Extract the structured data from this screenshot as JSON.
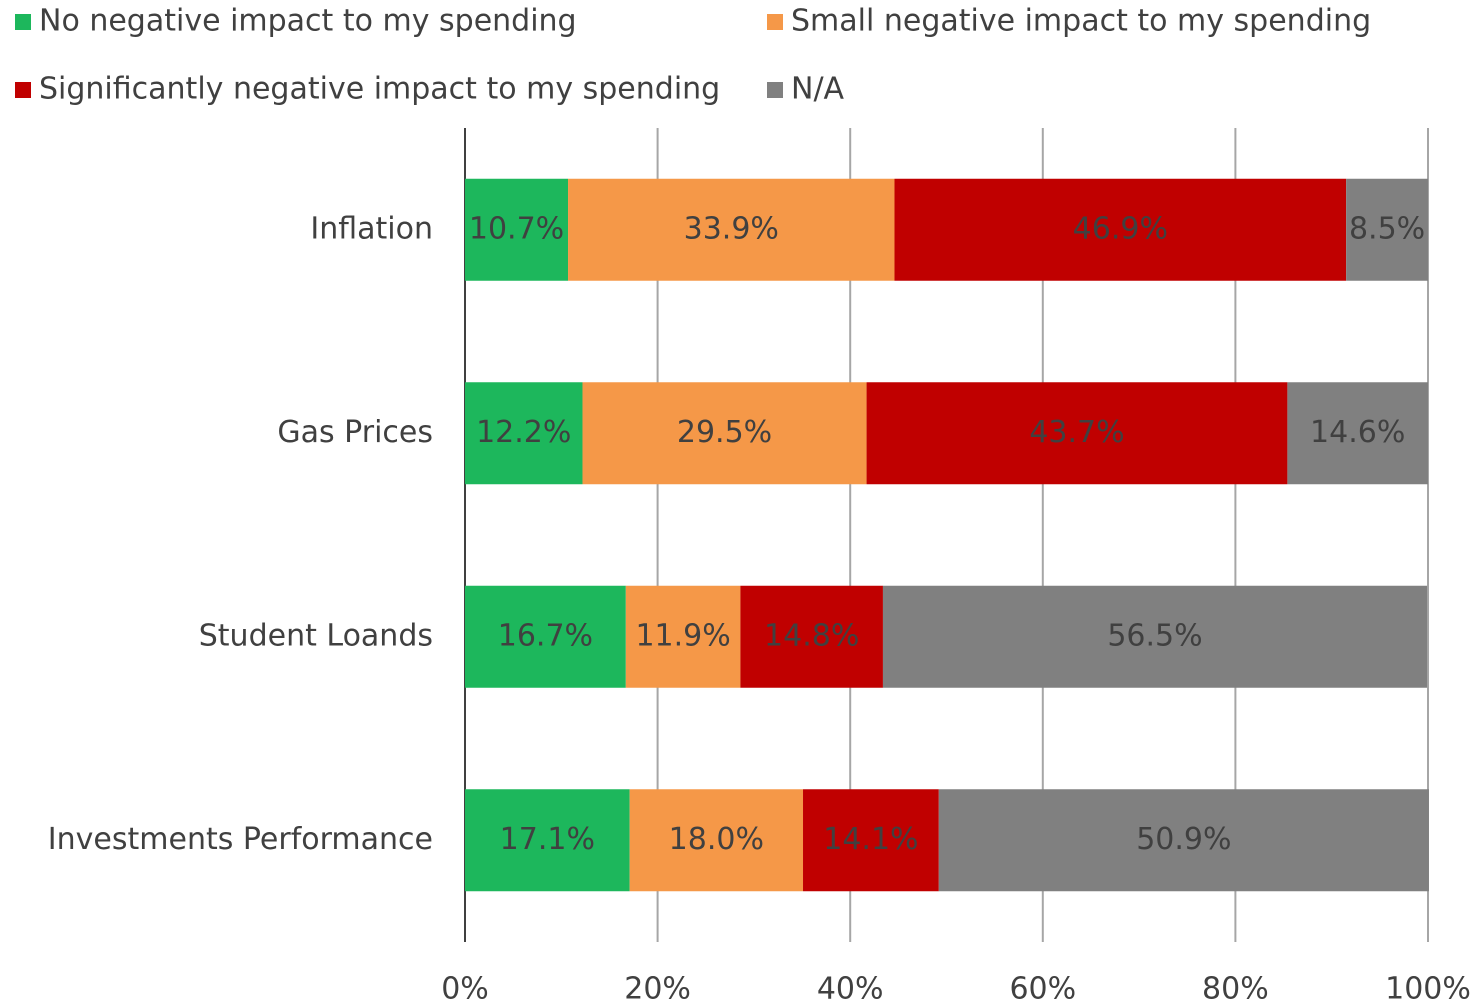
{
  "chart_data": {
    "type": "bar",
    "orientation": "horizontal",
    "stacked": true,
    "categories": [
      "Inflation",
      "Gas Prices",
      "Student Loands",
      "Investments Performance"
    ],
    "series": [
      {
        "name": "No negative impact to my spending",
        "color": "#1db75c",
        "values": [
          10.7,
          12.2,
          16.7,
          17.1
        ],
        "value_labels": [
          "10.7%",
          "12.2%",
          "16.7%",
          "17.1%"
        ]
      },
      {
        "name": "Small negative impact to my spending",
        "color": "#f59848",
        "values": [
          33.9,
          29.5,
          11.9,
          18.0
        ],
        "value_labels": [
          "33.9%",
          "29.5%",
          "11.9%",
          "18.0%"
        ]
      },
      {
        "name": "Significantly negative impact to my spending",
        "color": "#c00000",
        "values": [
          46.9,
          43.7,
          14.8,
          14.1
        ],
        "value_labels": [
          "46.9%",
          "43.7%",
          "14.8%",
          "14.1%"
        ]
      },
      {
        "name": "N/A",
        "color": "#808080",
        "values": [
          8.5,
          14.6,
          56.5,
          50.9
        ],
        "value_labels": [
          "8.5%",
          "14.6%",
          "56.5%",
          "50.9%"
        ]
      }
    ],
    "xlim": [
      0,
      100
    ],
    "xticks": [
      {
        "value": 0,
        "label": "0%"
      },
      {
        "value": 20,
        "label": "20%"
      },
      {
        "value": 40,
        "label": "40%"
      },
      {
        "value": 60,
        "label": "60%"
      },
      {
        "value": 80,
        "label": "80%"
      },
      {
        "value": 100,
        "label": "100%"
      }
    ],
    "grid": true,
    "legend": "top"
  }
}
